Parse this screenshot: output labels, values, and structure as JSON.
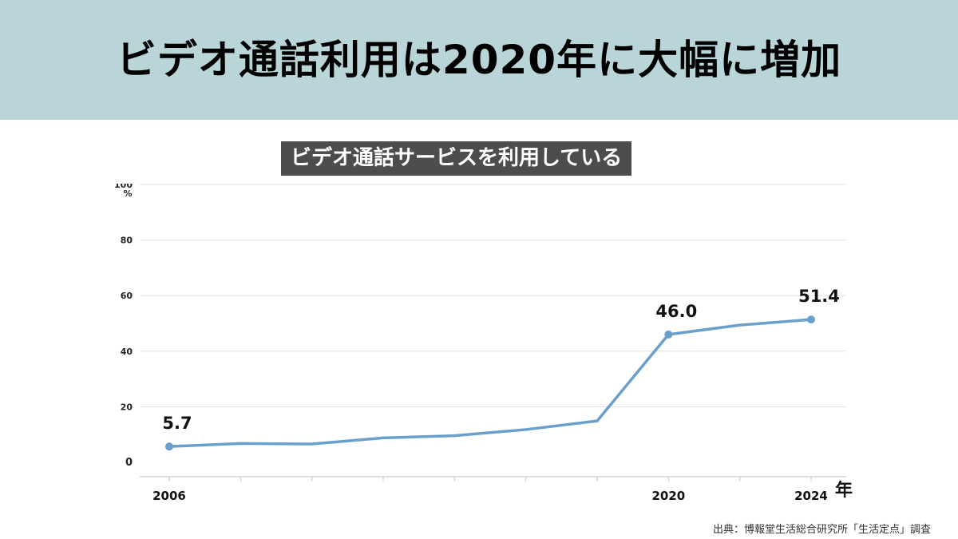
{
  "header": {
    "title": "ビデオ通話利用は2020年に大幅に増加"
  },
  "chart_data": {
    "type": "line",
    "title": "ビデオ通話サービスを利用している",
    "xlabel": "年",
    "ylabel": "%",
    "ylim": [
      0,
      100
    ],
    "yticks": [
      "0",
      "20",
      "40",
      "60",
      "80",
      "100"
    ],
    "x": [
      2006,
      2008,
      2010,
      2012,
      2014,
      2016,
      2018,
      2020,
      2022,
      2024
    ],
    "x_tick_labels": [
      "2006",
      "",
      "",
      "",
      "",
      "",
      "",
      "2020",
      "",
      "2024"
    ],
    "series": [
      {
        "values": [
          5.7,
          6.8,
          6.6,
          8.8,
          9.6,
          11.8,
          14.9,
          46.0,
          49.4,
          51.4
        ],
        "data_labels": [
          "5.7",
          "",
          "",
          "",
          "",
          "",
          "",
          "46.0",
          "",
          "51.4"
        ]
      }
    ],
    "line_color": "#6a9fcc",
    "grid": true,
    "legend": "none"
  },
  "source": {
    "text": "出典：博報堂生活総合研究所「生活定点」調査"
  }
}
